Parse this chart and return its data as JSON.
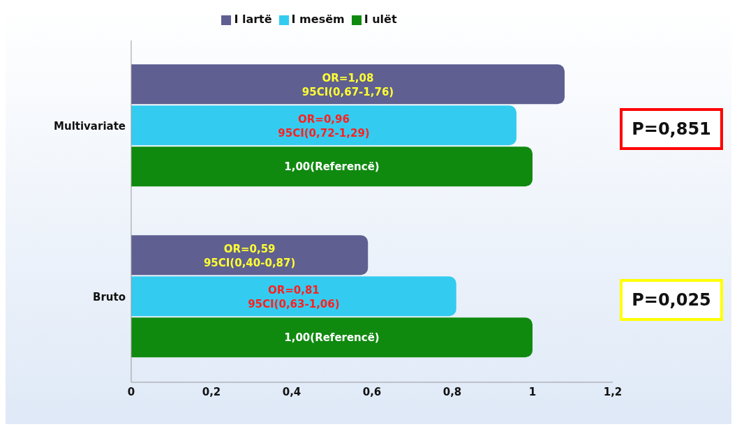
{
  "chart_data": {
    "type": "bar",
    "orientation": "horizontal",
    "categories": [
      "Multivariate",
      "Bruto"
    ],
    "series": [
      {
        "name": "I lartë",
        "color": "#5f5f91",
        "values": [
          1.08,
          0.59
        ],
        "value_labels": [
          "OR=1,08\n95CI(0,67-1,76)",
          "OR=0,59\n95CI(0,40-0,87)"
        ]
      },
      {
        "name": "I mesëm",
        "color": "#33ccf0",
        "values": [
          0.96,
          0.81
        ],
        "value_labels": [
          "OR=0,96\n95CI(0,72-1,29)",
          "OR=0,81\n95CI(0,63-1,06)"
        ]
      },
      {
        "name": "I ulët",
        "color": "#0f8a0f",
        "values": [
          1.0,
          1.0
        ],
        "value_labels": [
          "1,00(Referencë)",
          "1,00(Referencë)"
        ]
      }
    ],
    "xlim": [
      0,
      1.2
    ],
    "xticks": [
      0,
      {
        "value": 0.2,
        "label": "0,2"
      },
      {
        "value": 0.4,
        "label": "0,4"
      },
      {
        "value": 0.6,
        "label": "0,6"
      },
      {
        "value": 0.8,
        "label": "0,8"
      },
      1,
      {
        "value": 1.2,
        "label": "1,2"
      }
    ],
    "legend": "top",
    "annotations": [
      "P=0,851",
      "P=0,025"
    ]
  }
}
